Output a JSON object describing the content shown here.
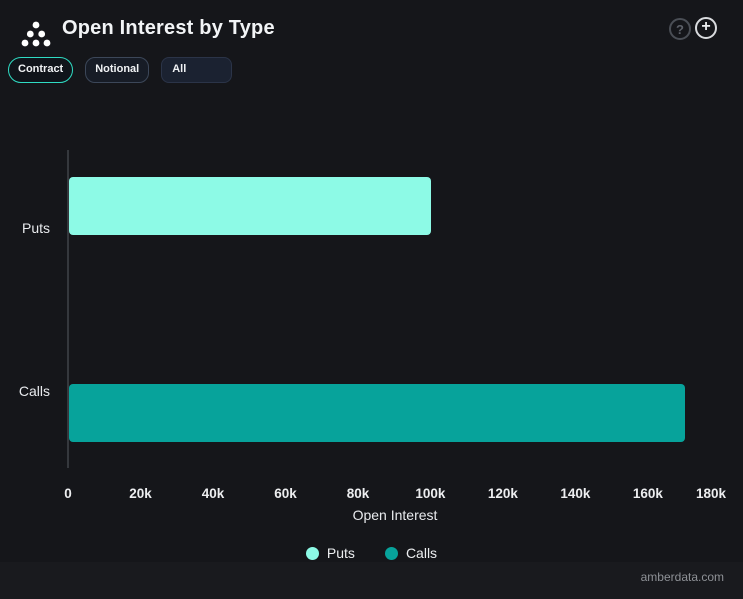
{
  "header": {
    "title": "Open Interest by Type",
    "logo_icon": "cluster-dots-icon",
    "help_glyph": "?",
    "add_glyph": "+"
  },
  "controls": {
    "contract_label": "Contract",
    "notional_label": "Notional",
    "type_filter_value": "All"
  },
  "chart_data": {
    "type": "bar",
    "orientation": "horizontal",
    "title": "Open Interest by Type",
    "categories": [
      "Puts",
      "Calls"
    ],
    "values": [
      100000,
      170000
    ],
    "colors": [
      "#8DFAE6",
      "#07A39B"
    ],
    "xlabel": "Open Interest",
    "ylabel": "",
    "xlim": [
      0,
      180000
    ],
    "xticks": [
      "0",
      "20k",
      "40k",
      "60k",
      "80k",
      "100k",
      "120k",
      "140k",
      "160k",
      "180k"
    ],
    "grid": false,
    "legend_position": "bottom",
    "legend": [
      {
        "label": "Puts",
        "color": "#8DFAE6"
      },
      {
        "label": "Calls",
        "color": "#07A39B"
      }
    ]
  },
  "colors": {
    "background": "#15161A",
    "footer_background": "#191A1E",
    "accent": "#2FDCC3",
    "axis_line": "#35383D",
    "text": "#EDEEF0"
  },
  "footer": {
    "watermark": "amberdata.com"
  }
}
